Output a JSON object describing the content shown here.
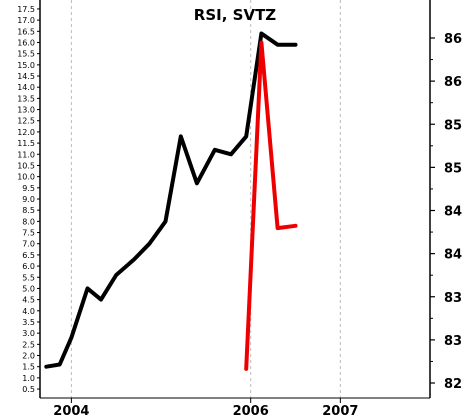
{
  "chart_data": {
    "type": "line",
    "title": "RSI, SVTZ",
    "xlabel": "",
    "ylabel": "",
    "grid": "vertical dashed at year ticks",
    "x_ticks": [
      "2004",
      "2006",
      "2007"
    ],
    "xlim": [
      2003.65,
      2008.0
    ],
    "left_axis": {
      "ylim": [
        0.1,
        17.9
      ],
      "ticks": [
        "0.5",
        "1.0",
        "1.5",
        "2.0",
        "2.5",
        "3.0",
        "3.5",
        "4.0",
        "4.5",
        "5.0",
        "5.5",
        "6.0",
        "6.5",
        "7.0",
        "7.5",
        "8.0",
        "8.5",
        "9.0",
        "9.5",
        "10.0",
        "10.5",
        "11.0",
        "11.5",
        "12.0",
        "12.5",
        "13.0",
        "13.5",
        "14.0",
        "14.5",
        "15.0",
        "15.5",
        "16.0",
        "16.5",
        "17.0",
        "17.5"
      ]
    },
    "right_axis": {
      "ticks": [
        "82",
        "83",
        "83",
        "84",
        "84",
        "85",
        "85",
        "86",
        "86"
      ]
    },
    "series": [
      {
        "axis": "left",
        "color": "#000000",
        "x": [
          2003.72,
          2003.87,
          2004.0,
          2004.18,
          2004.33,
          2004.5,
          2004.7,
          2004.87,
          2005.05,
          2005.22,
          2005.4,
          2005.6,
          2005.78,
          2005.95,
          2006.12,
          2006.3,
          2006.5
        ],
        "y": [
          1.5,
          1.6,
          2.8,
          5.0,
          4.5,
          5.6,
          6.3,
          7.0,
          8.0,
          11.8,
          9.7,
          11.2,
          11.0,
          11.8,
          16.4,
          15.9,
          15.9
        ]
      },
      {
        "axis": "left",
        "color": "#ee0000",
        "x": [
          2005.95,
          2006.12,
          2006.3,
          2006.5
        ],
        "y": [
          1.4,
          16.0,
          7.7,
          7.8
        ]
      }
    ]
  }
}
